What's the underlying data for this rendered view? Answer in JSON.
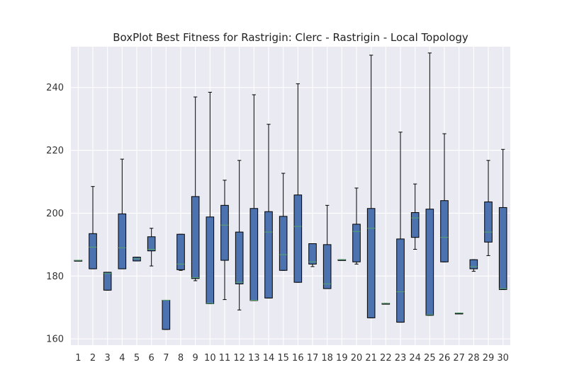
{
  "chart_data": {
    "type": "box",
    "title": "BoxPlot Best Fitness for Rastrigin: Clerc - Rastrigin - Local Topology",
    "xlabel": "",
    "ylabel": "",
    "categories": [
      "1",
      "2",
      "3",
      "4",
      "5",
      "6",
      "7",
      "8",
      "9",
      "10",
      "11",
      "12",
      "13",
      "14",
      "15",
      "16",
      "17",
      "18",
      "19",
      "20",
      "21",
      "22",
      "23",
      "24",
      "25",
      "26",
      "27",
      "28",
      "29",
      "30"
    ],
    "ylim": [
      158,
      253
    ],
    "yticks": [
      160,
      180,
      200,
      220,
      240
    ],
    "grid": true,
    "colors": {
      "background": "#EAEAF2",
      "grid": "#FFFFFF",
      "box_fill": "#4C72B0",
      "box_edge": "#000000",
      "whisker": "#000000",
      "median": "#55A868"
    },
    "boxes": [
      {
        "min": 185,
        "q1": 185,
        "median": 185,
        "q3": 185,
        "max": 185
      },
      {
        "min": 182.3,
        "q1": 182.3,
        "median": 189.2,
        "q3": 193.5,
        "max": 208.5
      },
      {
        "min": 175.5,
        "q1": 175.5,
        "median": 180.8,
        "q3": 181.2,
        "max": 181.2
      },
      {
        "min": 182.3,
        "q1": 182.3,
        "median": 189,
        "q3": 199.8,
        "max": 217.2
      },
      {
        "min": 184.8,
        "q1": 184.8,
        "median": 185.5,
        "q3": 186,
        "max": 186
      },
      {
        "min": 183.2,
        "q1": 188,
        "median": 188.5,
        "q3": 192.5,
        "max": 195.2
      },
      {
        "min": 163,
        "q1": 163,
        "median": 172.3,
        "q3": 172.3,
        "max": 172.3
      },
      {
        "min": 181.8,
        "q1": 182,
        "median": 183.8,
        "q3": 193.3,
        "max": 193.3
      },
      {
        "min": 178.5,
        "q1": 179.2,
        "median": 179.5,
        "q3": 205.3,
        "max": 237
      },
      {
        "min": 171.2,
        "q1": 171.2,
        "median": 171.3,
        "q3": 198.8,
        "max": 238.5
      },
      {
        "min": 172.5,
        "q1": 185,
        "median": 196.2,
        "q3": 202.5,
        "max": 210.5
      },
      {
        "min": 169.2,
        "q1": 177.5,
        "median": 178,
        "q3": 194,
        "max": 216.8
      },
      {
        "min": 172.2,
        "q1": 172.2,
        "median": 172.3,
        "q3": 201.5,
        "max": 237.7
      },
      {
        "min": 173,
        "q1": 173,
        "median": 194,
        "q3": 200.5,
        "max": 228.3
      },
      {
        "min": 181.8,
        "q1": 181.8,
        "median": 186.8,
        "q3": 199,
        "max": 212.7
      },
      {
        "min": 178,
        "q1": 178,
        "median": 195.8,
        "q3": 205.8,
        "max": 241.2
      },
      {
        "min": 183,
        "q1": 183.8,
        "median": 184.5,
        "q3": 190.3,
        "max": 190.3
      },
      {
        "min": 176,
        "q1": 176,
        "median": 177.5,
        "q3": 190,
        "max": 202.5
      },
      {
        "min": 185.2,
        "q1": 185.2,
        "median": 185.2,
        "q3": 185.2,
        "max": 185.2
      },
      {
        "min": 183.8,
        "q1": 184.5,
        "median": 194.2,
        "q3": 196.5,
        "max": 208
      },
      {
        "min": 166.7,
        "q1": 166.7,
        "median": 195.2,
        "q3": 201.5,
        "max": 250.3
      },
      {
        "min": 171.3,
        "q1": 171.3,
        "median": 171.3,
        "q3": 171.3,
        "max": 171.3
      },
      {
        "min": 165.3,
        "q1": 165.3,
        "median": 175,
        "q3": 191.8,
        "max": 225.8
      },
      {
        "min": 188.5,
        "q1": 192.3,
        "median": 198.5,
        "q3": 200.2,
        "max": 209.3
      },
      {
        "min": 167.5,
        "q1": 167.5,
        "median": 167.7,
        "q3": 201.3,
        "max": 251
      },
      {
        "min": 184.5,
        "q1": 184.5,
        "median": 192.3,
        "q3": 204,
        "max": 225.3
      },
      {
        "min": 168.2,
        "q1": 168.2,
        "median": 168.2,
        "q3": 168.2,
        "max": 168.2
      },
      {
        "min": 181.5,
        "q1": 182.3,
        "median": 183,
        "q3": 185.2,
        "max": 185.2
      },
      {
        "min": 186.5,
        "q1": 190.8,
        "median": 194,
        "q3": 203.6,
        "max": 216.8
      },
      {
        "min": 175.7,
        "q1": 175.7,
        "median": 176,
        "q3": 201.8,
        "max": 220.3
      }
    ]
  }
}
